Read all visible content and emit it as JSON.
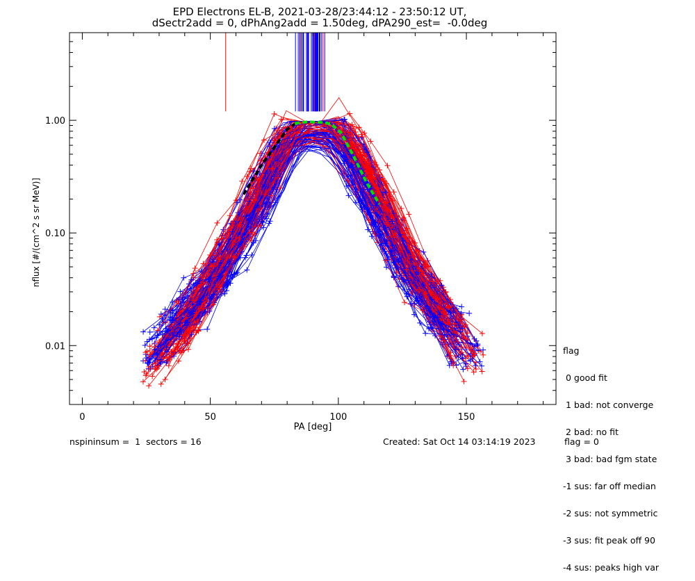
{
  "title_lines": [
    "EPD Electrons EL-B, 2021-03-28/23:44:12 - 23:50:12 UT,",
    "dSectr2add = 0, dPhAng2add = 1.50deg, dPA290_est=  -0.0deg"
  ],
  "legend": {
    "title": "flag",
    "items": [
      " 0 good fit",
      " 1 bad: not converge",
      " 2 bad: no fit",
      " 3 bad: bad fgm state",
      "-1 sus: far off median",
      "-2 sus: not symmetric",
      "-3 sus: fit peak off 90",
      "-4 sus: peaks high var"
    ]
  },
  "footer": {
    "left": "nspininsum =  1  sectors = 16",
    "created": "Created: Sat Oct 14 03:14:19 2023",
    "flag": "flag = 0"
  },
  "colors": {
    "series_a": "#0000ff",
    "series_b": "#ff0000",
    "fit_median": "#000000",
    "fit_green": "#00dd00"
  },
  "chart_data": {
    "type": "line",
    "title": "EPD Electrons EL-B, 2021-03-28/23:44:12 - 23:50:12 UT, dSectr2add = 0, dPhAng2add = 1.50deg, dPA290_est=  -0.0deg",
    "xlabel": "PA [deg]",
    "ylabel": "nflux [#/(cm^2 s sr MeV)]",
    "xlim": [
      -5,
      185
    ],
    "ylim": [
      0.003,
      6
    ],
    "yscale": "log",
    "x_ticks": [
      0,
      50,
      100,
      150
    ],
    "x_tick_labels": [
      "0",
      "50",
      "100",
      "150"
    ],
    "y_ticks": [
      0.01,
      0.1,
      1.0
    ],
    "y_tick_labels": [
      "0.01",
      "0.10",
      "1.00"
    ],
    "grid": false,
    "legend_position": "right",
    "series": [
      {
        "color": "blue",
        "marker": "plus",
        "x": [
          25,
          33,
          42,
          51,
          60,
          70,
          79,
          83,
          88,
          93,
          98,
          104,
          113,
          122,
          131,
          140,
          150,
          155
        ],
        "y": [
          0.008,
          0.012,
          0.02,
          0.035,
          0.08,
          0.2,
          0.55,
          0.8,
          0.8,
          0.8,
          0.78,
          0.5,
          0.2,
          0.08,
          0.035,
          0.018,
          0.01,
          0.009
        ]
      },
      {
        "color": "red",
        "marker": "plus",
        "x": [
          25,
          33,
          42,
          51,
          60,
          70,
          79,
          83,
          88,
          93,
          98,
          104,
          113,
          122,
          131,
          140,
          150,
          155
        ],
        "y": [
          0.006,
          0.01,
          0.018,
          0.04,
          0.1,
          0.25,
          0.65,
          0.9,
          0.92,
          0.92,
          0.9,
          0.6,
          0.28,
          0.1,
          0.04,
          0.02,
          0.009,
          0.007
        ]
      },
      {
        "color": "black",
        "style": "dashed",
        "x": [
          63,
          70,
          76,
          80,
          83
        ],
        "y": [
          0.22,
          0.4,
          0.62,
          0.83,
          0.93
        ]
      },
      {
        "color": "green",
        "style": "dashed",
        "x": [
          83,
          88,
          93,
          97,
          101,
          106,
          111,
          116
        ],
        "y": [
          0.94,
          0.97,
          0.96,
          0.93,
          0.78,
          0.48,
          0.28,
          0.18
        ]
      }
    ],
    "spikes": {
      "x_range": [
        83,
        95
      ],
      "y_from": 1.2,
      "y_to": 6,
      "red_x": 56,
      "red_y_from": 1.2
    }
  }
}
